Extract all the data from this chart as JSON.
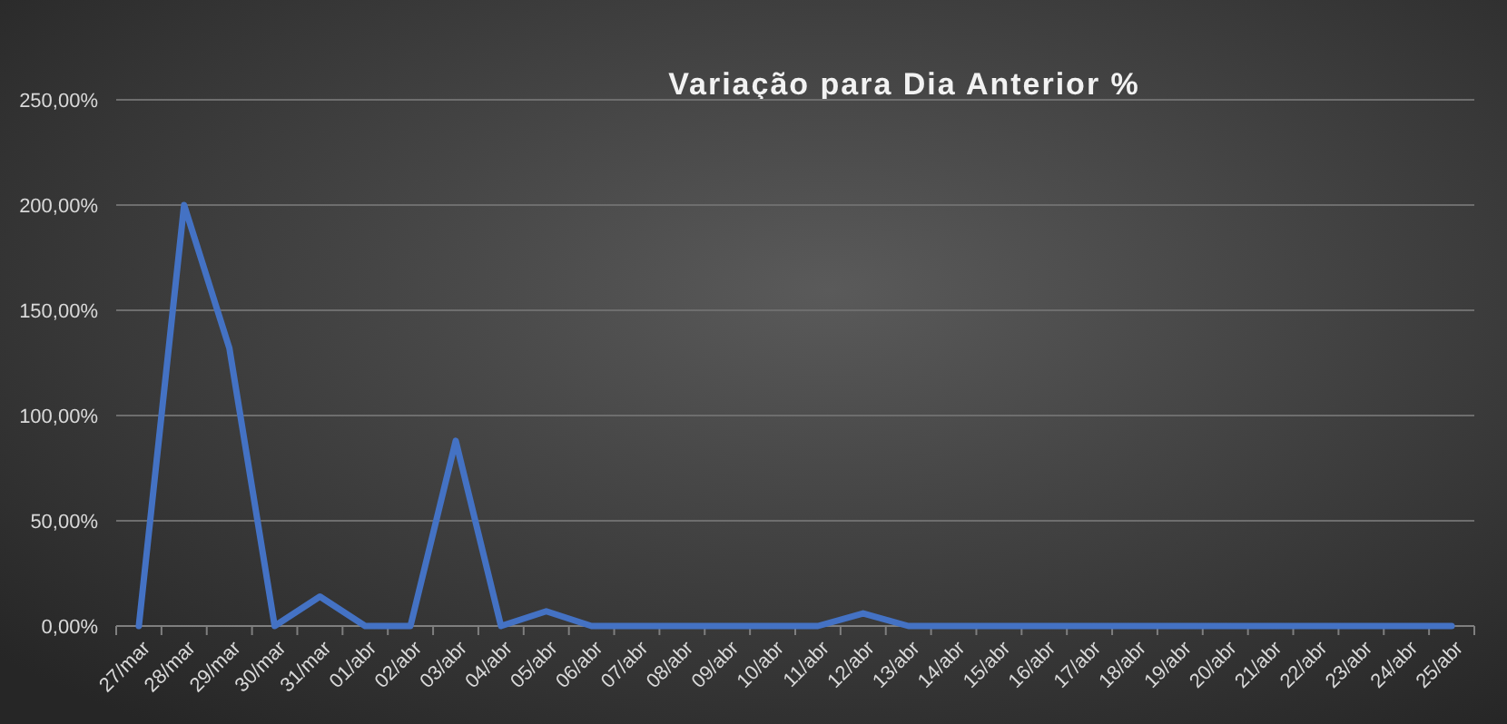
{
  "chart_data": {
    "type": "line",
    "title": "Variação para Dia Anterior %",
    "categories": [
      "27/mar",
      "28/mar",
      "29/mar",
      "30/mar",
      "31/mar",
      "01/abr",
      "02/abr",
      "03/abr",
      "04/abr",
      "05/abr",
      "06/abr",
      "07/abr",
      "08/abr",
      "09/abr",
      "10/abr",
      "11/abr",
      "12/abr",
      "13/abr",
      "14/abr",
      "15/abr",
      "16/abr",
      "17/abr",
      "18/abr",
      "19/abr",
      "20/abr",
      "21/abr",
      "22/abr",
      "23/abr",
      "24/abr",
      "25/abr"
    ],
    "series": [
      {
        "color": "#4472c4",
        "values": [
          0,
          200,
          132,
          0,
          14,
          0,
          0,
          88,
          0,
          7,
          0,
          0,
          0,
          0,
          0,
          0,
          6,
          0,
          0,
          0,
          0,
          0,
          0,
          0,
          0,
          0,
          0,
          0,
          0,
          0
        ]
      }
    ],
    "ylim": [
      0,
      250
    ],
    "yticks": [
      {
        "value": 0,
        "label": "0,00%"
      },
      {
        "value": 50,
        "label": "50,00%"
      },
      {
        "value": 100,
        "label": "100,00%"
      },
      {
        "value": 150,
        "label": "150,00%"
      },
      {
        "value": 200,
        "label": "200,00%"
      },
      {
        "value": 250,
        "label": "250,00%"
      }
    ],
    "grid": "y",
    "marker": "none",
    "line_style": "solid"
  }
}
